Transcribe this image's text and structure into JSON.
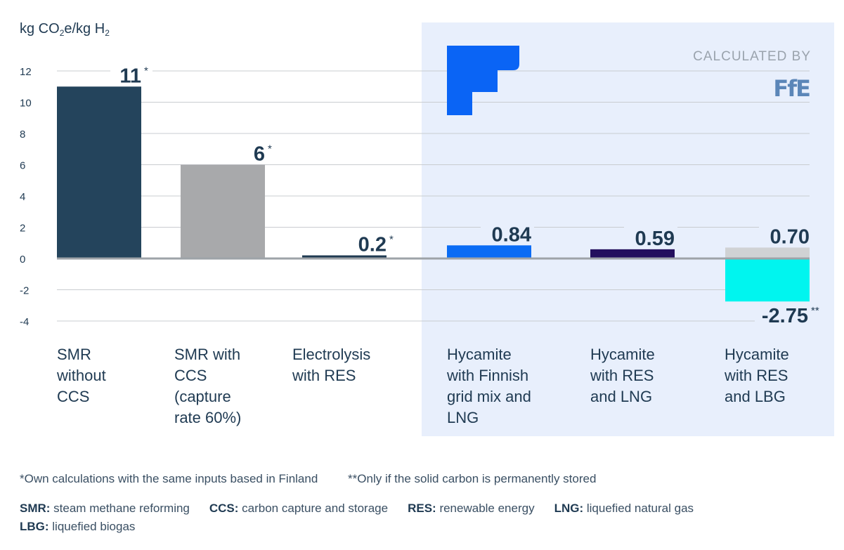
{
  "chart_data": {
    "type": "bar",
    "title": "",
    "ylabel": {
      "pre": "kg CO",
      "sub1": "2",
      "mid": "e/kg H",
      "sub2": "2"
    },
    "ylim": [
      -4,
      12
    ],
    "yticks": [
      12,
      10,
      8,
      6,
      4,
      2,
      0,
      -2,
      -4
    ],
    "grid": true,
    "categories": [
      [
        "SMR",
        "without",
        "CCS"
      ],
      [
        "SMR with",
        "CCS",
        "(capture",
        "rate 60%)"
      ],
      [
        "Electrolysis",
        "with RES"
      ],
      [
        "Hycamite",
        "with Finnish",
        "grid mix and",
        "LNG"
      ],
      [
        "Hycamite",
        "with RES",
        "and LNG"
      ],
      [
        "Hycamite",
        "with RES",
        "and LBG"
      ]
    ],
    "values": [
      11,
      6,
      0.2,
      0.84,
      0.59,
      0.7
    ],
    "negative_values": [
      null,
      null,
      null,
      null,
      null,
      -2.75
    ],
    "value_labels": [
      "11",
      "6",
      "0.2",
      "0.84",
      "0.59",
      "0.70"
    ],
    "negative_labels": [
      null,
      null,
      null,
      null,
      null,
      "-2.75"
    ],
    "label_marks": [
      "*",
      "*",
      "*",
      "",
      "",
      ""
    ],
    "negative_marks": [
      null,
      null,
      null,
      null,
      null,
      "**"
    ],
    "colors": [
      "#24445c",
      "#a8a9ab",
      "#1f3a52",
      "#0a6cf5",
      "#24105e",
      "#d0d2d4"
    ],
    "negative_color": "#00f5ef",
    "highlight_region_color": "#e8effc"
  },
  "branding": {
    "calculated_by": "CALCULATED BY",
    "hycamite_logo_color": "#0a64f5",
    "ffe_logo_text": "FfE",
    "ffe_logo_color": "#5b86b8"
  },
  "footnotes": {
    "single": "*Own calculations with the same inputs based in Finland",
    "double": "**Only if the solid carbon is permanently stored"
  },
  "glossary": [
    {
      "abbr": "SMR:",
      "text": "steam methane reforming"
    },
    {
      "abbr": "CCS:",
      "text": "carbon capture and storage"
    },
    {
      "abbr": "RES:",
      "text": "renewable energy"
    },
    {
      "abbr": "LNG:",
      "text": "liquefied natural gas"
    },
    {
      "abbr": "LBG:",
      "text": "liquefied biogas"
    }
  ]
}
